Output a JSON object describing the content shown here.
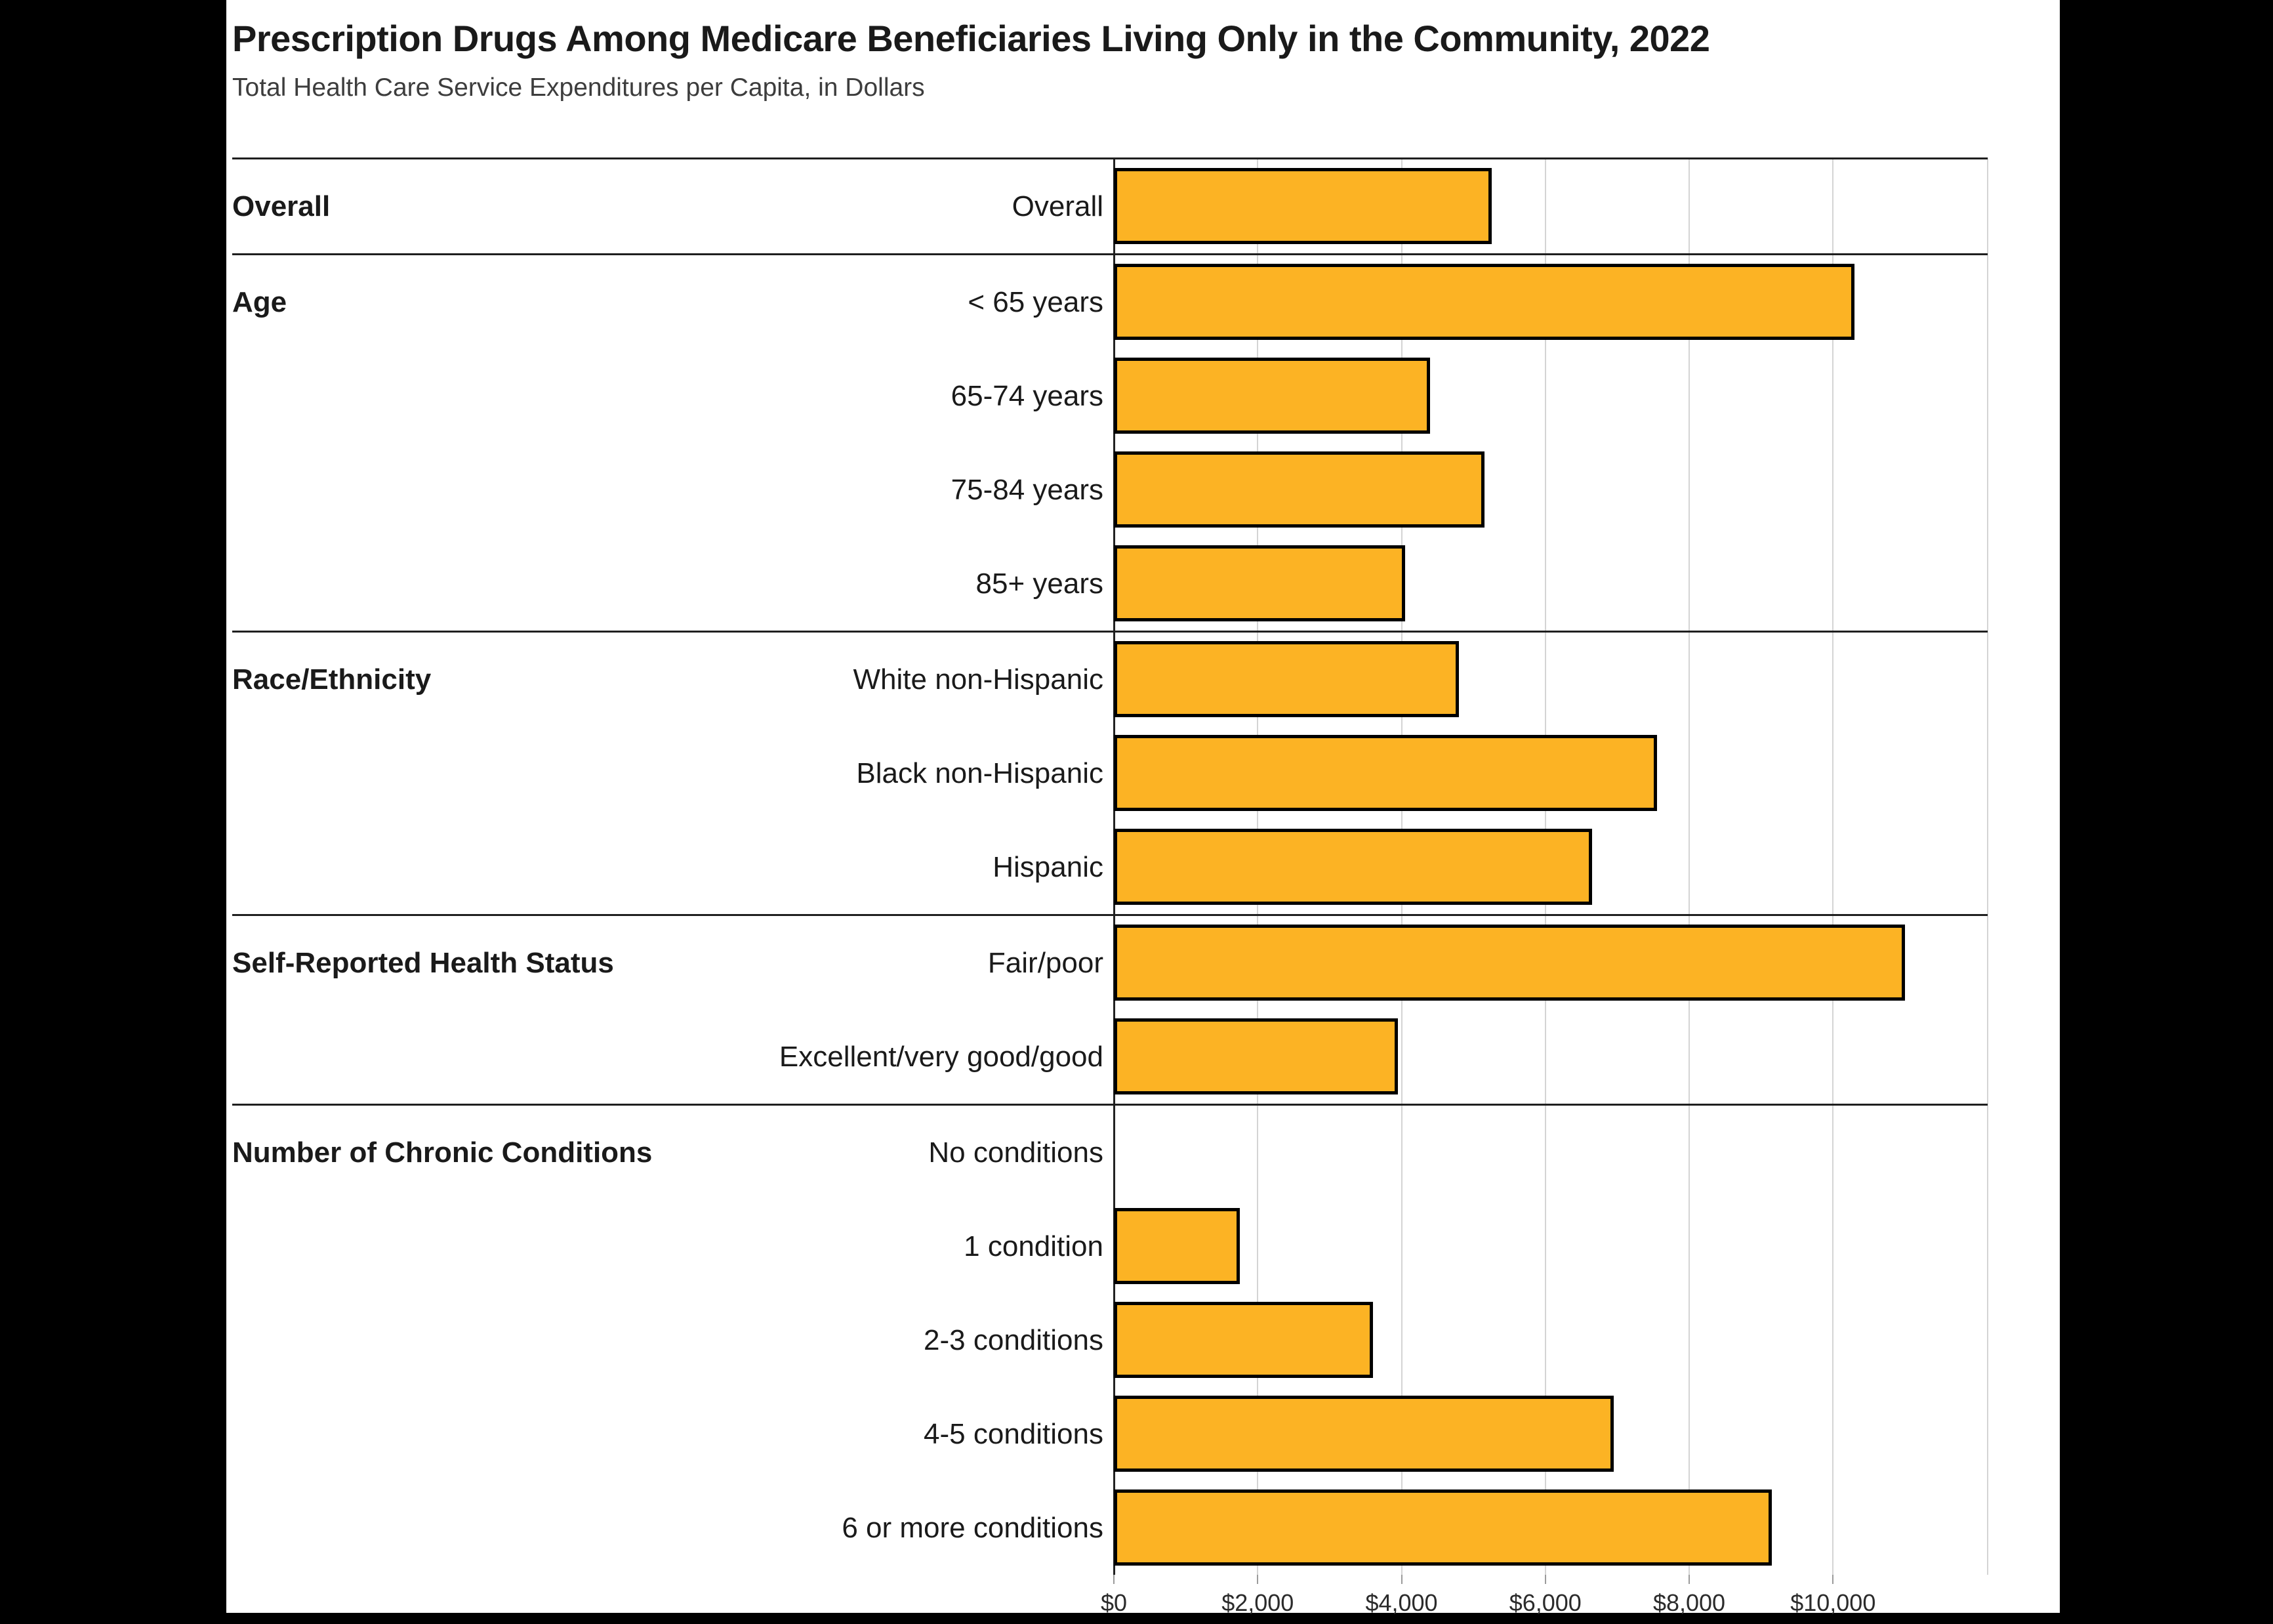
{
  "title": "Prescription Drugs Among Medicare Beneficiaries Living Only in the Community, 2022",
  "subtitle": "Total Health Care Service Expenditures per Capita, in Dollars",
  "chart_data": {
    "type": "bar",
    "orientation": "horizontal",
    "title": "Prescription Drugs Among Medicare Beneficiaries Living Only in the Community, 2022",
    "subtitle": "Total Health Care Service Expenditures per Capita, in Dollars",
    "value_unit": "dollars per capita",
    "grid": true,
    "bar_color": "#FCB324",
    "bar_border_color": "#000000",
    "groups": [
      {
        "label": "Overall",
        "rows": [
          {
            "label": "Overall",
            "value": 5250
          }
        ]
      },
      {
        "label": "Age",
        "rows": [
          {
            "label": "< 65 years",
            "value": 10300
          },
          {
            "label": "65-74 years",
            "value": 4400
          },
          {
            "label": "75-84 years",
            "value": 5150
          },
          {
            "label": "85+ years",
            "value": 4050
          }
        ]
      },
      {
        "label": "Race/Ethnicity",
        "rows": [
          {
            "label": "White non-Hispanic",
            "value": 4800
          },
          {
            "label": "Black non-Hispanic",
            "value": 7550
          },
          {
            "label": "Hispanic",
            "value": 6650
          }
        ]
      },
      {
        "label": "Self-Reported Health Status",
        "rows": [
          {
            "label": "Fair/poor",
            "value": 11000
          },
          {
            "label": "Excellent/very good/good",
            "value": 3950
          }
        ]
      },
      {
        "label": "Number of Chronic Conditions",
        "rows": [
          {
            "label": "No conditions",
            "value": 0
          },
          {
            "label": "1 condition",
            "value": 1750
          },
          {
            "label": "2-3 conditions",
            "value": 3600
          },
          {
            "label": "4-5 conditions",
            "value": 6950
          },
          {
            "label": "6 or more conditions",
            "value": 9150
          }
        ]
      }
    ],
    "x_axis": {
      "tick_labels": [
        "$0",
        "$2,000",
        "$4,000",
        "$6,000",
        "$8,000",
        "$10,000"
      ],
      "tick_values": [
        0,
        2000,
        4000,
        6000,
        8000,
        10000
      ],
      "axis_max": 12150
    }
  }
}
